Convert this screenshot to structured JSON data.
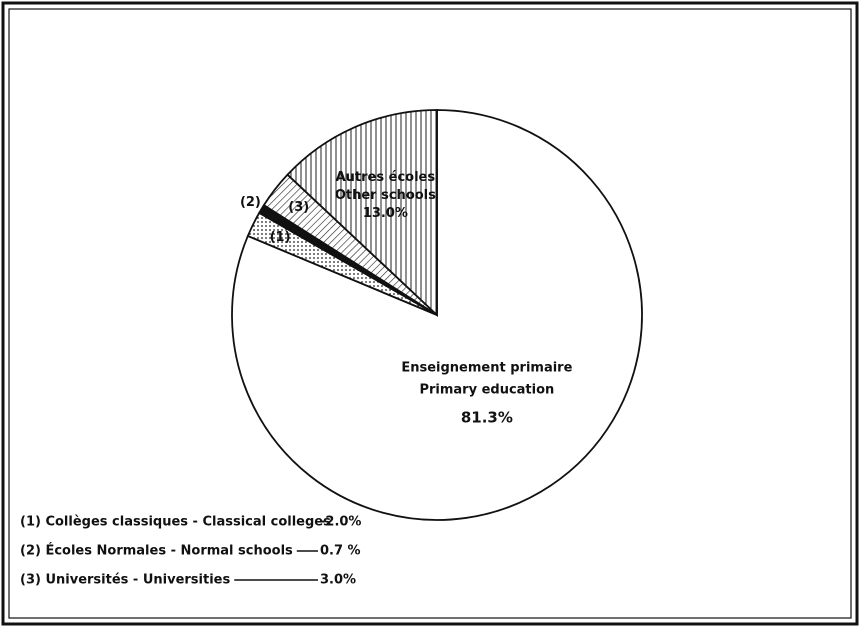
{
  "chart_data": {
    "type": "pie",
    "labels": [
      [
        "Enseignement primaire",
        "Primary education"
      ],
      [
        "(1)"
      ],
      [
        "(2)"
      ],
      [
        "(3)"
      ],
      [
        "Autres écoles",
        "Other schools"
      ]
    ],
    "values": [
      81.3,
      2.0,
      0.7,
      3.0,
      13.0
    ],
    "value_labels": [
      "81.3%",
      null,
      null,
      null,
      "13.0%"
    ],
    "patterns": [
      "none",
      "dots",
      "solid",
      "diagonal",
      "vertical"
    ],
    "legend": [
      {
        "text": "(1) Collèges classiques - Classical colleges",
        "value_label": "-2.0%"
      },
      {
        "text": "(2) Écoles Normales - Normal schools",
        "value_label": "0.7 %"
      },
      {
        "text": "(3) Universités - Universities",
        "value_label": "3.0%"
      }
    ]
  }
}
